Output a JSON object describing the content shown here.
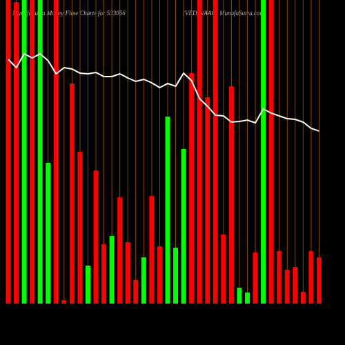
{
  "chart_data": {
    "type": "bar",
    "title": "MunafaSutra Money Flow Charts for 533056",
    "subtitle": "(VEDAVAAG) MunafaSutra.com",
    "categories": [
      null,
      null,
      null,
      null,
      null,
      null,
      null,
      null,
      null,
      null,
      null,
      null,
      null,
      null,
      null,
      null,
      null,
      null,
      null,
      null,
      null,
      null,
      null,
      null,
      null,
      null,
      null,
      null,
      null,
      null,
      null,
      null,
      null,
      null,
      null,
      null,
      null,
      null,
      null,
      null
    ],
    "values": [
      440,
      437,
      440,
      440,
      440,
      204,
      440,
      5,
      319,
      220,
      55,
      193,
      86,
      98,
      154,
      89,
      34,
      67,
      156,
      83,
      271,
      81,
      224,
      334,
      440,
      299,
      440,
      100,
      315,
      23,
      16,
      74,
      440,
      440,
      76,
      49,
      53,
      17,
      76,
      67
    ],
    "colors": [
      "#ff0000",
      "#ff0000",
      "#00ff00",
      "#ff0000",
      "#00ff00",
      "#00ff00",
      "#ff0000",
      "#ff0000",
      "#ff0000",
      "#ff0000",
      "#00ff00",
      "#ff0000",
      "#ff0000",
      "#00ff00",
      "#ff0000",
      "#ff0000",
      "#ff0000",
      "#00ff00",
      "#ff0000",
      "#ff0000",
      "#00ff00",
      "#00ff00",
      "#00ff00",
      "#ff0000",
      "#ff0000",
      "#ff0000",
      "#ff0000",
      "#ff0000",
      "#ff0000",
      "#00ff00",
      "#00ff00",
      "#ff0000",
      "#00ff00",
      "#ff0000",
      "#ff0000",
      "#ff0000",
      "#ff0000",
      "#ff0000",
      "#ff0000",
      "#ff0000"
    ],
    "line": {
      "color": "#ffffff",
      "values": [
        354,
        342,
        362,
        356,
        362,
        352,
        333,
        342,
        340,
        334,
        333,
        335,
        329,
        329,
        333,
        327,
        322,
        325,
        320,
        313,
        319,
        315,
        334,
        323,
        297,
        286,
        273,
        272,
        263,
        264,
        266,
        262,
        282,
        276,
        272,
        268,
        267,
        263,
        254,
        250
      ]
    },
    "ylim": [
      0,
      440
    ]
  }
}
